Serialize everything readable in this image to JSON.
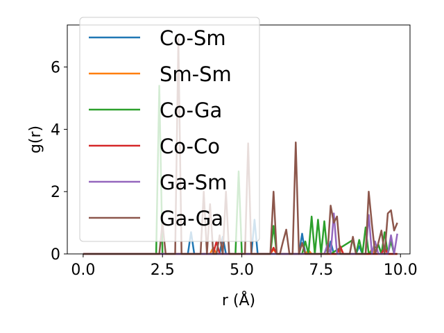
{
  "chart_data": {
    "type": "line",
    "title": "",
    "xlabel": "r (Å)",
    "ylabel": "g(r)",
    "xlim": [
      -0.5,
      10.3
    ],
    "ylim": [
      0,
      7.35
    ],
    "xticks": [
      0.0,
      2.5,
      5.0,
      7.5,
      10.0
    ],
    "xtick_labels": [
      "0.0",
      "2.5",
      "5.0",
      "7.5",
      "10.0"
    ],
    "yticks": [
      0,
      2,
      4,
      6
    ],
    "ytick_labels": [
      "0",
      "2",
      "4",
      "6"
    ],
    "grid": false,
    "legend_position": "upper-left",
    "series": [
      {
        "name": "Co-Sm",
        "color": "#1f77b4",
        "x": [
          0,
          3.3,
          3.4,
          3.5,
          4.3,
          4.4,
          4.5,
          5.3,
          5.4,
          5.5,
          6.8,
          6.9,
          7.0,
          7.7,
          7.8,
          7.9,
          8.6,
          8.7,
          8.8,
          9.2,
          9.3,
          9.4,
          9.9
        ],
        "y": [
          0,
          0,
          0.7,
          0,
          0,
          0.55,
          0,
          0,
          1.1,
          0,
          0,
          0.65,
          0,
          0,
          0.4,
          0,
          0,
          0.25,
          0,
          0,
          0.3,
          0,
          0
        ]
      },
      {
        "name": "Sm-Sm",
        "color": "#ff7f0e",
        "x": [
          0,
          4.0,
          4.1,
          4.2,
          5.9,
          6.0,
          6.1,
          7.0,
          7.1,
          7.2,
          8.0,
          8.1,
          8.2,
          9.0,
          9.1,
          9.2,
          9.9
        ],
        "y": [
          0,
          0,
          0.2,
          0,
          0,
          0.15,
          0,
          0,
          0.12,
          0,
          0,
          0.18,
          0,
          0,
          0.15,
          0,
          0
        ]
      },
      {
        "name": "Co-Ga",
        "color": "#2ca02c",
        "x": [
          0,
          2.3,
          2.4,
          2.5,
          4.8,
          4.9,
          5.0,
          5.9,
          6.0,
          6.1,
          6.9,
          7.0,
          7.1,
          7.2,
          7.3,
          7.4,
          7.5,
          7.6,
          7.7,
          7.8,
          8.5,
          8.6,
          8.7,
          8.8,
          8.9,
          9.0,
          9.3,
          9.4,
          9.5,
          9.6,
          9.7,
          9.8
        ],
        "y": [
          0,
          0,
          5.4,
          0,
          0,
          2.65,
          0,
          0,
          0.9,
          0,
          0,
          0.4,
          0,
          1.2,
          0,
          1.1,
          0,
          1.05,
          0,
          0,
          0.45,
          0,
          0.45,
          0,
          0.85,
          0,
          0.3,
          0,
          0.7,
          0,
          0.4,
          0
        ]
      },
      {
        "name": "Co-Co",
        "color": "#d62728",
        "x": [
          0,
          4.1,
          4.2,
          4.3,
          5.8,
          5.9,
          6.0,
          6.1,
          8.0,
          8.1,
          8.2,
          9.4,
          9.5,
          9.6,
          9.9
        ],
        "y": [
          0,
          0,
          0.4,
          0,
          0,
          0,
          0.2,
          0,
          0,
          0.25,
          0,
          0,
          0.2,
          0,
          0
        ]
      },
      {
        "name": "Ga-Sm",
        "color": "#9467bd",
        "x": [
          0,
          7.6,
          7.7,
          7.8,
          7.9,
          8.0,
          8.1,
          8.9,
          9.0,
          9.1,
          9.2,
          9.3,
          9.6,
          9.7,
          9.8,
          9.9
        ],
        "y": [
          0,
          0,
          0.3,
          0,
          1.3,
          0,
          0,
          0,
          1.25,
          0,
          0.4,
          0,
          0,
          0.6,
          0,
          0.65
        ]
      },
      {
        "name": "Ga-Ga",
        "color": "#8c564b",
        "x": [
          0,
          2.4,
          2.5,
          2.6,
          2.9,
          3.0,
          3.1,
          3.7,
          3.8,
          3.9,
          4.0,
          4.1,
          4.2,
          4.3,
          4.4,
          4.5,
          4.6,
          5.1,
          5.2,
          5.3,
          5.9,
          6.0,
          6.1,
          6.2,
          6.3,
          6.4,
          6.5,
          6.6,
          6.7,
          6.8,
          6.9,
          7.0,
          7.7,
          7.8,
          7.9,
          8.0,
          8.1,
          8.4,
          8.5,
          8.6,
          8.9,
          9.0,
          9.1,
          9.2,
          9.3,
          9.4,
          9.5,
          9.6,
          9.7,
          9.8,
          9.9
        ],
        "y": [
          0,
          0,
          1.0,
          0,
          0,
          6.9,
          0,
          0,
          2.0,
          0,
          1.6,
          0,
          0,
          0.6,
          0,
          2.0,
          0,
          0,
          3.55,
          0,
          0,
          2.0,
          0,
          0,
          0.4,
          0.78,
          0,
          0,
          3.58,
          0,
          0.35,
          0,
          0,
          1.55,
          1.0,
          1.2,
          0,
          0,
          0.55,
          0,
          0,
          2.0,
          0.95,
          0,
          0.35,
          0.75,
          0,
          1.3,
          1.4,
          0.75,
          1.0
        ]
      }
    ]
  }
}
